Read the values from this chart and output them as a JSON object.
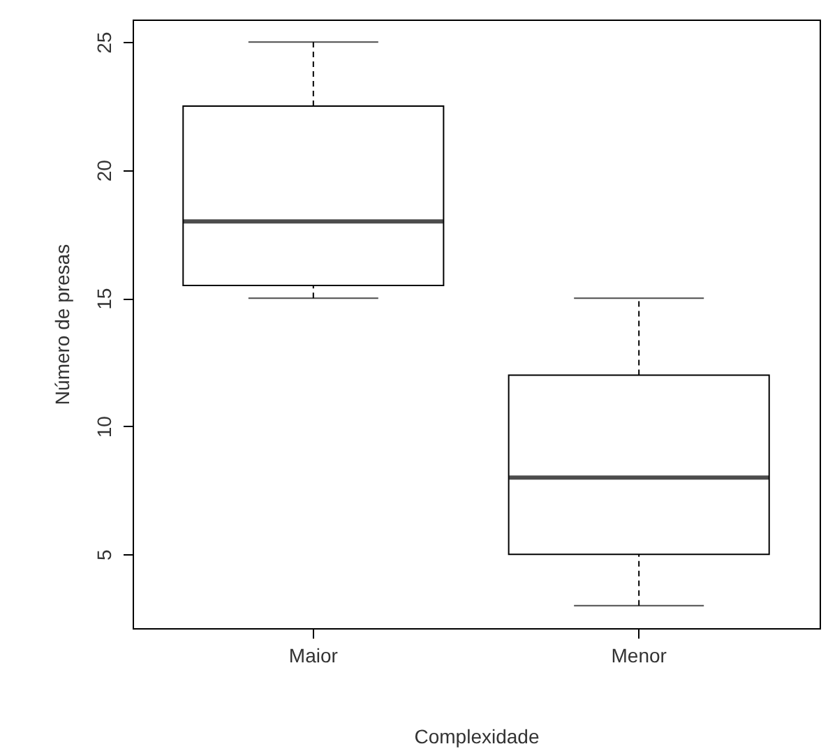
{
  "chart_data": {
    "type": "box",
    "xlabel": "Complexidade",
    "ylabel": "Número de presas",
    "categories": [
      "Maior",
      "Menor"
    ],
    "boxes": [
      {
        "low": 15,
        "q1": 15.5,
        "median": 18,
        "q3": 22.5,
        "high": 25
      },
      {
        "low": 3,
        "q1": 5,
        "median": 8,
        "q3": 12,
        "high": 15
      }
    ],
    "ylim": [
      2.12,
      25.88
    ],
    "yticks": [
      5,
      10,
      15,
      20,
      25
    ]
  }
}
